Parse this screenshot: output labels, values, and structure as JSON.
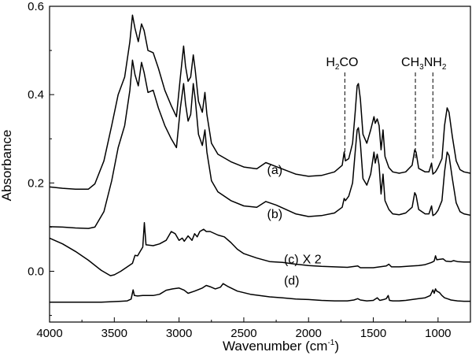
{
  "chart_data": {
    "type": "line",
    "title": "",
    "xlabel": "Wavenumber (cm-1)",
    "xlabel_parts": {
      "main": "Wavenumber (cm",
      "sup": "-1",
      "close": ")"
    },
    "ylabel": "Absorbance",
    "xlim": [
      4000,
      750
    ],
    "x_reversed": true,
    "ylim": [
      -0.115,
      0.6
    ],
    "x_ticks": [
      4000,
      3500,
      3000,
      2500,
      2000,
      1500,
      1000
    ],
    "x_tick_labels": [
      "4000",
      "3500",
      "3000",
      "2500",
      "2000",
      "1500",
      "1000"
    ],
    "y_ticks": [
      0.0,
      0.2,
      0.4,
      0.6
    ],
    "y_tick_labels": [
      "0.0",
      "0.2",
      "0.4",
      "0.6"
    ],
    "grid": false,
    "legend": "none",
    "annotations": [
      {
        "text": "H2CO",
        "parts": [
          "H",
          "2",
          "CO"
        ],
        "x": 1720
      },
      {
        "text": "CH3NH2",
        "parts": [
          "CH",
          "3",
          "NH",
          "2"
        ],
        "x_lines": [
          1175,
          1040
        ]
      }
    ],
    "series": [
      {
        "label": "(a)",
        "label_x": 2320,
        "label_y": 0.22,
        "points": [
          [
            4000,
            0.191
          ],
          [
            3900,
            0.188
          ],
          [
            3800,
            0.186
          ],
          [
            3700,
            0.186
          ],
          [
            3650,
            0.198
          ],
          [
            3580,
            0.25
          ],
          [
            3520,
            0.33
          ],
          [
            3470,
            0.4
          ],
          [
            3420,
            0.44
          ],
          [
            3380,
            0.52
          ],
          [
            3360,
            0.58
          ],
          [
            3340,
            0.55
          ],
          [
            3315,
            0.52
          ],
          [
            3290,
            0.56
          ],
          [
            3270,
            0.545
          ],
          [
            3240,
            0.5
          ],
          [
            3200,
            0.495
          ],
          [
            3160,
            0.46
          ],
          [
            3110,
            0.41
          ],
          [
            3060,
            0.375
          ],
          [
            3020,
            0.35
          ],
          [
            2990,
            0.44
          ],
          [
            2965,
            0.51
          ],
          [
            2950,
            0.465
          ],
          [
            2930,
            0.43
          ],
          [
            2910,
            0.44
          ],
          [
            2890,
            0.49
          ],
          [
            2875,
            0.455
          ],
          [
            2850,
            0.385
          ],
          [
            2820,
            0.36
          ],
          [
            2800,
            0.405
          ],
          [
            2785,
            0.355
          ],
          [
            2750,
            0.29
          ],
          [
            2700,
            0.265
          ],
          [
            2600,
            0.248
          ],
          [
            2500,
            0.236
          ],
          [
            2400,
            0.232
          ],
          [
            2330,
            0.246
          ],
          [
            2250,
            0.237
          ],
          [
            2100,
            0.22
          ],
          [
            2000,
            0.215
          ],
          [
            1900,
            0.217
          ],
          [
            1800,
            0.225
          ],
          [
            1740,
            0.24
          ],
          [
            1725,
            0.27
          ],
          [
            1715,
            0.25
          ],
          [
            1690,
            0.255
          ],
          [
            1660,
            0.29
          ],
          [
            1640,
            0.36
          ],
          [
            1625,
            0.42
          ],
          [
            1615,
            0.425
          ],
          [
            1600,
            0.39
          ],
          [
            1580,
            0.31
          ],
          [
            1550,
            0.29
          ],
          [
            1520,
            0.32
          ],
          [
            1495,
            0.35
          ],
          [
            1485,
            0.335
          ],
          [
            1470,
            0.345
          ],
          [
            1455,
            0.33
          ],
          [
            1440,
            0.275
          ],
          [
            1425,
            0.32
          ],
          [
            1410,
            0.26
          ],
          [
            1380,
            0.235
          ],
          [
            1350,
            0.225
          ],
          [
            1300,
            0.222
          ],
          [
            1250,
            0.225
          ],
          [
            1200,
            0.24
          ],
          [
            1180,
            0.275
          ],
          [
            1170,
            0.27
          ],
          [
            1150,
            0.233
          ],
          [
            1100,
            0.225
          ],
          [
            1070,
            0.225
          ],
          [
            1050,
            0.245
          ],
          [
            1040,
            0.22
          ],
          [
            1020,
            0.225
          ],
          [
            1000,
            0.235
          ],
          [
            970,
            0.255
          ],
          [
            950,
            0.33
          ],
          [
            930,
            0.37
          ],
          [
            915,
            0.36
          ],
          [
            890,
            0.305
          ],
          [
            860,
            0.25
          ],
          [
            830,
            0.23
          ],
          [
            800,
            0.225
          ],
          [
            750,
            0.222
          ]
        ]
      },
      {
        "label": "(b)",
        "label_x": 2320,
        "label_y": 0.12,
        "points": [
          [
            4000,
            0.101
          ],
          [
            3900,
            0.1
          ],
          [
            3800,
            0.098
          ],
          [
            3700,
            0.097
          ],
          [
            3650,
            0.1
          ],
          [
            3580,
            0.135
          ],
          [
            3520,
            0.205
          ],
          [
            3470,
            0.28
          ],
          [
            3420,
            0.33
          ],
          [
            3380,
            0.41
          ],
          [
            3360,
            0.478
          ],
          [
            3340,
            0.445
          ],
          [
            3315,
            0.42
          ],
          [
            3290,
            0.473
          ],
          [
            3270,
            0.45
          ],
          [
            3240,
            0.405
          ],
          [
            3200,
            0.41
          ],
          [
            3160,
            0.37
          ],
          [
            3110,
            0.33
          ],
          [
            3060,
            0.3
          ],
          [
            3020,
            0.28
          ],
          [
            2990,
            0.37
          ],
          [
            2965,
            0.425
          ],
          [
            2950,
            0.38
          ],
          [
            2930,
            0.34
          ],
          [
            2910,
            0.355
          ],
          [
            2890,
            0.425
          ],
          [
            2875,
            0.39
          ],
          [
            2850,
            0.31
          ],
          [
            2820,
            0.285
          ],
          [
            2800,
            0.32
          ],
          [
            2785,
            0.27
          ],
          [
            2750,
            0.205
          ],
          [
            2700,
            0.18
          ],
          [
            2600,
            0.16
          ],
          [
            2500,
            0.148
          ],
          [
            2400,
            0.145
          ],
          [
            2330,
            0.158
          ],
          [
            2250,
            0.15
          ],
          [
            2100,
            0.13
          ],
          [
            2000,
            0.124
          ],
          [
            1900,
            0.126
          ],
          [
            1800,
            0.132
          ],
          [
            1740,
            0.145
          ],
          [
            1725,
            0.165
          ],
          [
            1715,
            0.16
          ],
          [
            1690,
            0.17
          ],
          [
            1660,
            0.2
          ],
          [
            1640,
            0.27
          ],
          [
            1625,
            0.32
          ],
          [
            1615,
            0.325
          ],
          [
            1600,
            0.29
          ],
          [
            1580,
            0.21
          ],
          [
            1550,
            0.195
          ],
          [
            1520,
            0.22
          ],
          [
            1495,
            0.27
          ],
          [
            1485,
            0.245
          ],
          [
            1470,
            0.265
          ],
          [
            1455,
            0.24
          ],
          [
            1440,
            0.175
          ],
          [
            1425,
            0.22
          ],
          [
            1410,
            0.16
          ],
          [
            1380,
            0.14
          ],
          [
            1350,
            0.13
          ],
          [
            1300,
            0.128
          ],
          [
            1250,
            0.132
          ],
          [
            1200,
            0.145
          ],
          [
            1180,
            0.178
          ],
          [
            1170,
            0.172
          ],
          [
            1150,
            0.14
          ],
          [
            1100,
            0.13
          ],
          [
            1070,
            0.13
          ],
          [
            1050,
            0.148
          ],
          [
            1040,
            0.126
          ],
          [
            1020,
            0.13
          ],
          [
            1000,
            0.138
          ],
          [
            970,
            0.16
          ],
          [
            950,
            0.225
          ],
          [
            930,
            0.27
          ],
          [
            915,
            0.262
          ],
          [
            890,
            0.21
          ],
          [
            860,
            0.155
          ],
          [
            830,
            0.135
          ],
          [
            800,
            0.13
          ],
          [
            750,
            0.127
          ]
        ]
      },
      {
        "label": "(c)",
        "label_suffix": "X 2",
        "label_x": 2190,
        "label_y": 0.018,
        "points": [
          [
            4000,
            0.075
          ],
          [
            3900,
            0.062
          ],
          [
            3800,
            0.045
          ],
          [
            3700,
            0.025
          ],
          [
            3600,
            0.002
          ],
          [
            3530,
            -0.01
          ],
          [
            3500,
            -0.008
          ],
          [
            3450,
            0.0
          ],
          [
            3400,
            0.01
          ],
          [
            3360,
            0.018
          ],
          [
            3340,
            0.036
          ],
          [
            3320,
            0.035
          ],
          [
            3300,
            0.045
          ],
          [
            3280,
            0.055
          ],
          [
            3268,
            0.11
          ],
          [
            3255,
            0.06
          ],
          [
            3200,
            0.058
          ],
          [
            3150,
            0.062
          ],
          [
            3100,
            0.07
          ],
          [
            3060,
            0.09
          ],
          [
            3030,
            0.085
          ],
          [
            3000,
            0.07
          ],
          [
            2975,
            0.075
          ],
          [
            2960,
            0.068
          ],
          [
            2930,
            0.08
          ],
          [
            2900,
            0.07
          ],
          [
            2880,
            0.085
          ],
          [
            2860,
            0.078
          ],
          [
            2840,
            0.09
          ],
          [
            2810,
            0.095
          ],
          [
            2790,
            0.09
          ],
          [
            2760,
            0.09
          ],
          [
            2700,
            0.082
          ],
          [
            2650,
            0.078
          ],
          [
            2600,
            0.065
          ],
          [
            2550,
            0.05
          ],
          [
            2500,
            0.04
          ],
          [
            2400,
            0.03
          ],
          [
            2300,
            0.022
          ],
          [
            2200,
            0.02
          ],
          [
            2100,
            0.016
          ],
          [
            2000,
            0.013
          ],
          [
            1900,
            0.011
          ],
          [
            1800,
            0.01
          ],
          [
            1700,
            0.009
          ],
          [
            1620,
            0.012
          ],
          [
            1600,
            0.008
          ],
          [
            1500,
            0.008
          ],
          [
            1450,
            0.01
          ],
          [
            1400,
            0.012
          ],
          [
            1380,
            0.016
          ],
          [
            1360,
            0.01
          ],
          [
            1300,
            0.01
          ],
          [
            1200,
            0.012
          ],
          [
            1150,
            0.013
          ],
          [
            1100,
            0.015
          ],
          [
            1050,
            0.02
          ],
          [
            1030,
            0.023
          ],
          [
            1020,
            0.035
          ],
          [
            1010,
            0.026
          ],
          [
            990,
            0.027
          ],
          [
            960,
            0.028
          ],
          [
            940,
            0.023
          ],
          [
            900,
            0.022
          ],
          [
            880,
            0.024
          ],
          [
            850,
            0.022
          ],
          [
            800,
            0.021
          ],
          [
            750,
            0.021
          ]
        ]
      },
      {
        "label": "(d)",
        "label_x": 2190,
        "label_y": -0.03,
        "points": [
          [
            4000,
            -0.07
          ],
          [
            3800,
            -0.07
          ],
          [
            3600,
            -0.07
          ],
          [
            3450,
            -0.068
          ],
          [
            3400,
            -0.067
          ],
          [
            3370,
            -0.063
          ],
          [
            3355,
            -0.042
          ],
          [
            3345,
            -0.055
          ],
          [
            3320,
            -0.056
          ],
          [
            3280,
            -0.055
          ],
          [
            3200,
            -0.055
          ],
          [
            3150,
            -0.052
          ],
          [
            3100,
            -0.043
          ],
          [
            3050,
            -0.04
          ],
          [
            3000,
            -0.038
          ],
          [
            2960,
            -0.043
          ],
          [
            2930,
            -0.05
          ],
          [
            2880,
            -0.045
          ],
          [
            2820,
            -0.038
          ],
          [
            2790,
            -0.032
          ],
          [
            2760,
            -0.035
          ],
          [
            2720,
            -0.04
          ],
          [
            2680,
            -0.036
          ],
          [
            2660,
            -0.028
          ],
          [
            2620,
            -0.035
          ],
          [
            2550,
            -0.045
          ],
          [
            2450,
            -0.052
          ],
          [
            2300,
            -0.058
          ],
          [
            2200,
            -0.06
          ],
          [
            2100,
            -0.063
          ],
          [
            2000,
            -0.064
          ],
          [
            1900,
            -0.066
          ],
          [
            1800,
            -0.067
          ],
          [
            1700,
            -0.067
          ],
          [
            1650,
            -0.065
          ],
          [
            1620,
            -0.062
          ],
          [
            1600,
            -0.065
          ],
          [
            1550,
            -0.067
          ],
          [
            1500,
            -0.066
          ],
          [
            1470,
            -0.06
          ],
          [
            1450,
            -0.066
          ],
          [
            1420,
            -0.064
          ],
          [
            1400,
            -0.062
          ],
          [
            1385,
            -0.055
          ],
          [
            1375,
            -0.066
          ],
          [
            1350,
            -0.067
          ],
          [
            1300,
            -0.067
          ],
          [
            1250,
            -0.066
          ],
          [
            1200,
            -0.064
          ],
          [
            1150,
            -0.062
          ],
          [
            1100,
            -0.06
          ],
          [
            1060,
            -0.055
          ],
          [
            1040,
            -0.042
          ],
          [
            1030,
            -0.05
          ],
          [
            1020,
            -0.04
          ],
          [
            1010,
            -0.045
          ],
          [
            990,
            -0.048
          ],
          [
            970,
            -0.055
          ],
          [
            950,
            -0.06
          ],
          [
            920,
            -0.063
          ],
          [
            900,
            -0.065
          ],
          [
            850,
            -0.067
          ],
          [
            800,
            -0.068
          ],
          [
            750,
            -0.068
          ]
        ]
      }
    ]
  }
}
